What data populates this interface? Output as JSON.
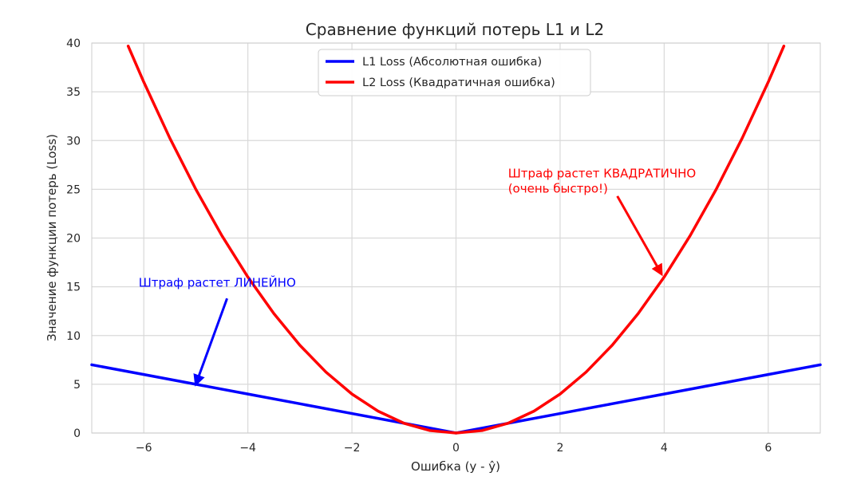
{
  "chart_data": {
    "type": "line",
    "title": "Сравнение функций потерь L1 и L2",
    "xlabel": "Ошибка (y - ŷ)",
    "ylabel": "Значение функции потерь (Loss)",
    "xlim": [
      -7,
      7
    ],
    "ylim": [
      0,
      40
    ],
    "grid": true,
    "legend_position": "top-center",
    "x_ticks": [
      -6,
      -4,
      -2,
      0,
      2,
      4,
      6
    ],
    "x_tick_labels": [
      "−6",
      "−4",
      "−2",
      "0",
      "2",
      "4",
      "6"
    ],
    "y_ticks": [
      0,
      5,
      10,
      15,
      20,
      25,
      30,
      35,
      40
    ],
    "y_tick_labels": [
      "0",
      "5",
      "10",
      "15",
      "20",
      "25",
      "30",
      "35",
      "40"
    ],
    "series": [
      {
        "name": "L1 Loss (Абсолютная ошибка)",
        "color": "#0000ff",
        "x": [
          -7,
          -6,
          -5,
          -4,
          -3,
          -2,
          -1,
          0,
          1,
          2,
          3,
          4,
          5,
          6,
          7
        ],
        "y": [
          7,
          6,
          5,
          4,
          3,
          2,
          1,
          0,
          1,
          2,
          3,
          4,
          5,
          6,
          7
        ]
      },
      {
        "name": "L2 Loss (Квадратичная ошибка)",
        "color": "#ff0000",
        "x": [
          -6.3,
          -6,
          -5.5,
          -5,
          -4.5,
          -4,
          -3.5,
          -3,
          -2.5,
          -2,
          -1.5,
          -1,
          -0.5,
          0,
          0.5,
          1,
          1.5,
          2,
          2.5,
          3,
          3.5,
          4,
          4.5,
          5,
          5.5,
          6,
          6.3
        ],
        "y": [
          39.69,
          36,
          30.25,
          25,
          20.25,
          16,
          12.25,
          9,
          6.25,
          4,
          2.25,
          1,
          0.25,
          0,
          0.25,
          1,
          2.25,
          4,
          6.25,
          9,
          12.25,
          16,
          20.25,
          25,
          30.25,
          36,
          39.69
        ]
      }
    ],
    "annotations": [
      {
        "text": [
          "Штраф растет ЛИНЕЙНО"
        ],
        "color": "#0000ff",
        "text_x": -6.1,
        "text_y": 15,
        "arrow_from": [
          -4.4,
          13.8
        ],
        "arrow_to": [
          -5,
          5
        ]
      },
      {
        "text": [
          "Штраф растет КВАДРАТИЧНО",
          "(очень быстро!)"
        ],
        "color": "#ff0000",
        "text_x": 1.0,
        "text_y": 26.2,
        "arrow_from": [
          3.1,
          24.3
        ],
        "arrow_to": [
          3.95,
          16.3
        ]
      }
    ]
  }
}
